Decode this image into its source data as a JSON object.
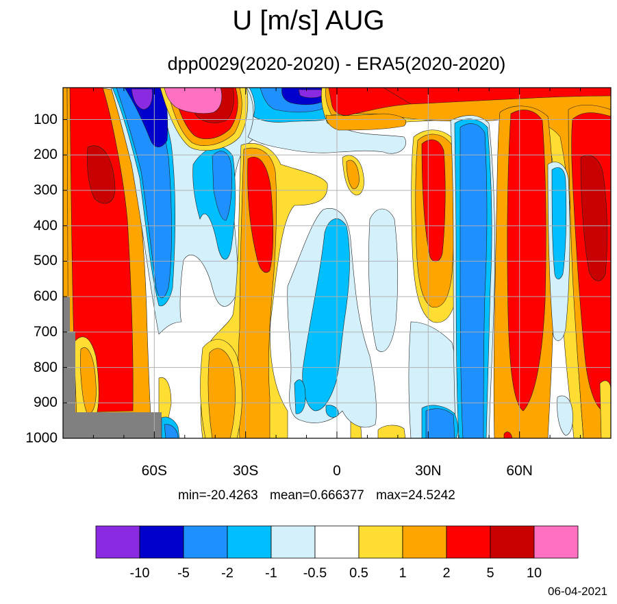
{
  "title": "U [m/s] AUG",
  "subtitle": "dpp0029(2020-2020) - ERA5(2020-2020)",
  "stats": {
    "min": "min=-20.4263",
    "mean": "mean=0.666377",
    "max": "max=24.5242"
  },
  "date": "06-04-2021",
  "chart_data": {
    "type": "heatmap",
    "description_type": "filled contour (latitude-pressure cross section)",
    "title": "U [m/s] AUG",
    "subtitle": "dpp0029(2020-2020) - ERA5(2020-2020)",
    "x_axis": {
      "range": [
        -90,
        90
      ],
      "ticks": [
        -60,
        -30,
        0,
        30,
        60
      ],
      "tick_labels": [
        "60S",
        "30S",
        "0",
        "30N",
        "60N"
      ]
    },
    "y_axis": {
      "range": [
        10,
        1000
      ],
      "inverted": true,
      "ticks": [
        100,
        200,
        300,
        400,
        500,
        600,
        700,
        800,
        900,
        1000
      ],
      "tick_labels": [
        "100",
        "200",
        "300",
        "400",
        "500",
        "600",
        "700",
        "800",
        "900",
        "1000"
      ]
    },
    "grid": true,
    "colorbar": {
      "levels": [
        "-10",
        "-5",
        "-2",
        "-1",
        "-0.5",
        "0.5",
        "1",
        "2",
        "5",
        "10"
      ],
      "colors": [
        "#8a2be2",
        "#0000cd",
        "#1e90ff",
        "#00bfff",
        "#d4f1fb",
        "#ffffff",
        "#ffdd33",
        "#ffa500",
        "#ff0000",
        "#c80000",
        "#ff70c0"
      ]
    },
    "min": -20.4263,
    "mean": 0.666377,
    "max": 24.5242
  }
}
